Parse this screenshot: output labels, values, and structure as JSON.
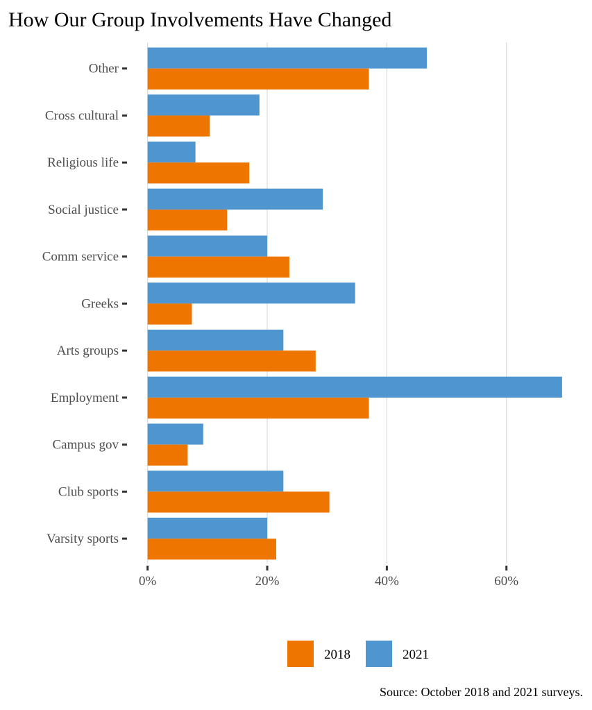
{
  "chart_data": {
    "type": "bar",
    "orientation": "horizontal",
    "title": "How Our Group Involvements Have Changed",
    "xlabel": "",
    "ylabel": "",
    "caption": "Source: October 2018 and 2021 surveys.",
    "categories": [
      "Other",
      "Cross cultural",
      "Religious life",
      "Social justice",
      "Comm service",
      "Greeks",
      "Arts groups",
      "Employment",
      "Campus gov",
      "Club sports",
      "Varsity sports"
    ],
    "series": [
      {
        "name": "2018",
        "color": "#ee7600",
        "values": [
          37.0,
          10.4,
          17.0,
          13.3,
          23.7,
          7.4,
          28.1,
          37.0,
          6.7,
          30.4,
          21.5
        ]
      },
      {
        "name": "2021",
        "color": "#4f95d0",
        "values": [
          46.7,
          18.7,
          8.0,
          29.3,
          20.0,
          34.7,
          22.7,
          69.3,
          9.3,
          22.7,
          20.0
        ]
      }
    ],
    "x_ticks": [
      0,
      20,
      40,
      60
    ],
    "x_tick_labels": [
      "0%",
      "20%",
      "40%",
      "60%"
    ],
    "xlim": [
      0,
      72.9
    ],
    "grid": "vertical-major",
    "legend_position": "bottom",
    "legend": [
      "2018",
      "2021"
    ]
  }
}
